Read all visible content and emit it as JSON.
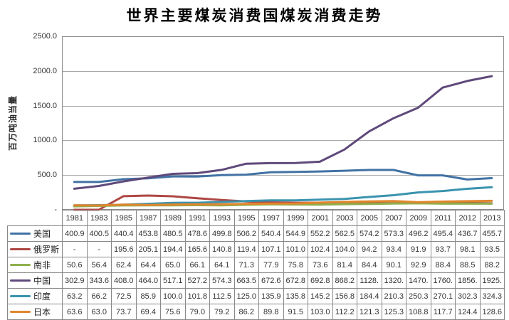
{
  "chart": {
    "title": "世界主要煤炭消费国煤炭消费走势",
    "y_axis_title": "百万吨油当量",
    "y_ticks": [
      {
        "value": 2500,
        "label": "2500.0"
      },
      {
        "value": 2000,
        "label": "2000.0"
      },
      {
        "value": 1500,
        "label": "1500.0"
      },
      {
        "value": 1000,
        "label": "1000.0"
      },
      {
        "value": 500,
        "label": "500.0"
      },
      {
        "value": 0,
        "label": "-"
      }
    ],
    "grid_color": "#A9A9A9",
    "plot_border_color": "#8C8C8C",
    "table_border_color": "#898989"
  },
  "chart_data": {
    "type": "line",
    "title": "世界主要煤炭消费国煤炭消费走势",
    "xlabel": "",
    "ylabel": "百万吨油当量",
    "ylim": [
      0,
      2500
    ],
    "grid": true,
    "legend_position": "data-table-left",
    "categories": [
      "1981",
      "1983",
      "1985",
      "1987",
      "1989",
      "1991",
      "1993",
      "1995",
      "1997",
      "1999",
      "2001",
      "2003",
      "2005",
      "2007",
      "2009",
      "2011",
      "2012",
      "2013"
    ],
    "series": [
      {
        "key": "usa",
        "name": "美国",
        "color": "#4272A4",
        "values": [
          400.9,
          400.5,
          440.4,
          453.8,
          480.5,
          478.6,
          499.8,
          506.2,
          540.4,
          544.9,
          552.2,
          562.5,
          574.2,
          573.3,
          496.2,
          495.4,
          436.7,
          455.7
        ],
        "display": [
          "400.9",
          "400.5",
          "440.4",
          "453.8",
          "480.5",
          "478.6",
          "499.8",
          "506.2",
          "540.4",
          "544.9",
          "552.2",
          "562.5",
          "574.2",
          "573.3",
          "496.2",
          "495.4",
          "436.7",
          "455.7"
        ]
      },
      {
        "key": "russia",
        "name": "俄罗斯",
        "color": "#AE4743",
        "values": [
          null,
          null,
          195.6,
          205.1,
          194.4,
          165.6,
          140.8,
          119.4,
          107.1,
          101.0,
          102.4,
          104.0,
          94.2,
          93.4,
          91.9,
          93.7,
          98.1,
          93.5
        ],
        "display": [
          "-",
          "-",
          "195.6",
          "205.1",
          "194.4",
          "165.6",
          "140.8",
          "119.4",
          "107.1",
          "101.0",
          "102.4",
          "104.0",
          "94.2",
          "93.4",
          "91.9",
          "93.7",
          "98.1",
          "93.5"
        ]
      },
      {
        "key": "south-africa",
        "name": "南非",
        "color": "#8FAF4C",
        "values": [
          50.6,
          56.4,
          62.4,
          64.4,
          65.0,
          66.1,
          64.1,
          71.3,
          77.9,
          75.8,
          73.6,
          81.4,
          84.4,
          90.1,
          92.9,
          88.4,
          88.5,
          88.2
        ],
        "display": [
          "50.6",
          "56.4",
          "62.4",
          "64.4",
          "65.0",
          "66.1",
          "64.1",
          "71.3",
          "77.9",
          "75.8",
          "73.6",
          "81.4",
          "84.4",
          "90.1",
          "92.9",
          "88.4",
          "88.5",
          "88.2"
        ]
      },
      {
        "key": "china",
        "name": "中国",
        "color": "#5F497A",
        "values": [
          302.9,
          343.6,
          408.0,
          464.0,
          517.1,
          527.2,
          574.3,
          663.5,
          672.6,
          672.8,
          692.8,
          868.2,
          1128,
          1320,
          1470,
          1760,
          1856,
          1925
        ],
        "display": [
          "302.9",
          "343.6",
          "408.0",
          "464.0",
          "517.1",
          "527.2",
          "574.3",
          "663.5",
          "672.6",
          "672.8",
          "692.8",
          "868.2",
          "1128.",
          "1320.",
          "1470.",
          "1760.",
          "1856.",
          "1925."
        ]
      },
      {
        "key": "india",
        "name": "印度",
        "color": "#3A93AE",
        "values": [
          63.2,
          66.2,
          72.5,
          85.9,
          100.0,
          101.8,
          112.5,
          125.0,
          135.9,
          135.8,
          145.2,
          156.8,
          184.4,
          210.3,
          250.3,
          270.1,
          302.3,
          324.3
        ],
        "display": [
          "63.2",
          "66.2",
          "72.5",
          "85.9",
          "100.0",
          "101.8",
          "112.5",
          "125.0",
          "135.9",
          "135.8",
          "145.2",
          "156.8",
          "184.4",
          "210.3",
          "250.3",
          "270.1",
          "302.3",
          "324.3"
        ]
      },
      {
        "key": "japan",
        "name": "日本",
        "color": "#E0862E",
        "values": [
          63.6,
          63.0,
          73.7,
          69.4,
          75.6,
          79.0,
          79.2,
          86.2,
          89.8,
          91.5,
          103.0,
          112.2,
          121.3,
          125.3,
          108.8,
          117.7,
          124.4,
          128.6
        ],
        "display": [
          "63.6",
          "63.0",
          "73.7",
          "69.4",
          "75.6",
          "79.0",
          "79.2",
          "86.2",
          "89.8",
          "91.5",
          "103.0",
          "112.2",
          "121.3",
          "125.3",
          "108.8",
          "117.7",
          "124.4",
          "128.6"
        ]
      }
    ]
  }
}
